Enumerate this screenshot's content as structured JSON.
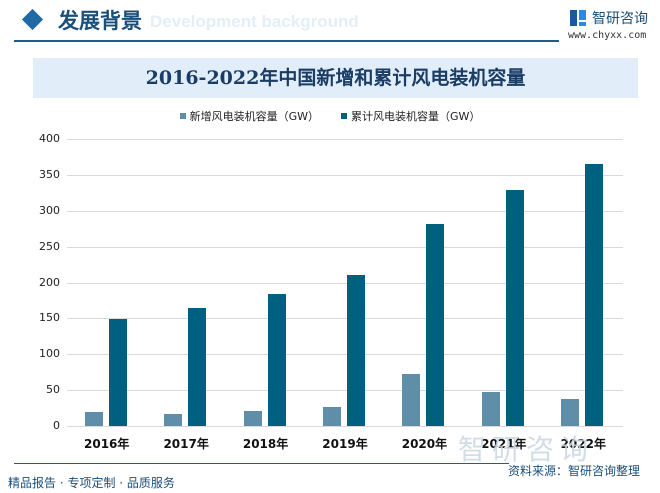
{
  "header": {
    "section_title": "发展背景",
    "ghost_text": "Development background",
    "brand_name": "智研咨询",
    "brand_url": "www.chyxx.com"
  },
  "colors": {
    "new_series": "#5f8ea8",
    "cumulative_series": "#00607f",
    "title_band": "#e1edf8",
    "accent": "#1f6aa5"
  },
  "chart_data": {
    "type": "bar",
    "title": "2016-2022年中国新增和累计风电装机容量",
    "xlabel": "",
    "ylabel": "",
    "categories": [
      "2016年",
      "2017年",
      "2018年",
      "2019年",
      "2020年",
      "2021年",
      "2022年"
    ],
    "series": [
      {
        "name": "新增风电装机容量（GW）",
        "values": [
          19,
          17,
          21,
          26,
          72,
          48,
          38
        ]
      },
      {
        "name": "累计风电装机容量（GW）",
        "values": [
          149,
          164,
          184,
          210,
          282,
          329,
          365
        ]
      }
    ],
    "ylim": [
      0,
      400
    ],
    "yticks": [
      "0",
      "50",
      "100",
      "150",
      "200",
      "250",
      "300",
      "350",
      "400"
    ],
    "grid": true,
    "legend_position": "top"
  },
  "footer": {
    "slogan": "精品报告 · 专项定制 · 品质服务",
    "source": "资料来源：智研咨询整理",
    "watermark": "智研咨询"
  }
}
